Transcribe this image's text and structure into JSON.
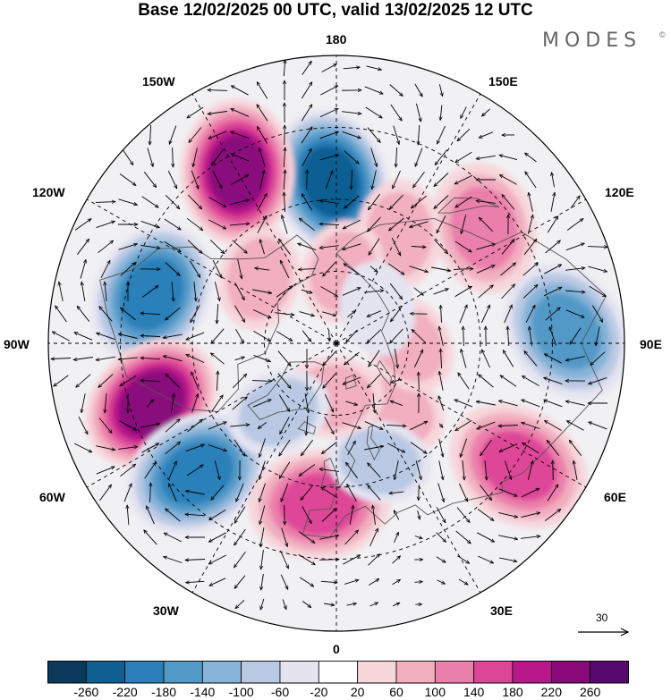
{
  "title": "Base 12/02/2025 00 UTC, valid 13/02/2025 12 UTC",
  "brand": {
    "name": "MODES",
    "mark": "©"
  },
  "longitude_labels": {
    "lon_180": "180",
    "lon_150e": "150E",
    "lon_120e": "120E",
    "lon_90e": "90E",
    "lon_60e": "60E",
    "lon_30e": "30E",
    "lon_0": "0",
    "lon_30w": "30W",
    "lon_60w": "60W",
    "lon_90w": "90W",
    "lon_120w": "120W",
    "lon_150w": "150W"
  },
  "reference_vector": {
    "value": "30"
  },
  "colorbar": {
    "tick_labels": [
      "-260",
      "-220",
      "-180",
      "-140",
      "-100",
      "-60",
      "-20",
      "20",
      "60",
      "100",
      "140",
      "180",
      "220",
      "260"
    ],
    "colors": [
      "#0b3a5c",
      "#0f5f93",
      "#2b80b9",
      "#5299c8",
      "#86b3d8",
      "#b9c9e3",
      "#e4e4f1",
      "#ffffff",
      "#f7d6dc",
      "#f1afc0",
      "#eb7fab",
      "#de4697",
      "#b9188a",
      "#89097b",
      "#560a6e"
    ]
  },
  "anomaly_centers": [
    {
      "type": "negative",
      "value": -240,
      "lon": -178,
      "lat": 45
    },
    {
      "type": "positive",
      "value": 230,
      "lon": -150,
      "lat": 35
    },
    {
      "type": "negative",
      "value": -210,
      "lon": -105,
      "lat": 37
    },
    {
      "type": "positive",
      "value": 240,
      "lon": -72,
      "lat": 36
    },
    {
      "type": "negative",
      "value": -210,
      "lon": -47,
      "lat": 37
    },
    {
      "type": "positive",
      "value": 140,
      "lon": -6,
      "lat": 45
    },
    {
      "type": "positive",
      "value": 160,
      "lon": 56,
      "lat": 29
    },
    {
      "type": "negative",
      "value": -170,
      "lon": 93,
      "lat": 26
    },
    {
      "type": "positive",
      "value": 120,
      "lon": 128,
      "lat": 38
    },
    {
      "type": "positive",
      "value": 70,
      "lon": 150,
      "lat": 55
    },
    {
      "type": "positive",
      "value": 60,
      "lon": 40,
      "lat": 65
    },
    {
      "type": "negative",
      "value": -60,
      "lon": 20,
      "lat": 55
    },
    {
      "type": "positive",
      "value": 60,
      "lon": 90,
      "lat": 70
    },
    {
      "type": "positive",
      "value": 60,
      "lon": -130,
      "lat": 62
    },
    {
      "type": "positive",
      "value": 60,
      "lon": 175,
      "lat": 70
    },
    {
      "type": "positive",
      "value": 60,
      "lon": -5,
      "lat": 75
    },
    {
      "type": "negative",
      "value": -40,
      "lon": 130,
      "lat": 75
    },
    {
      "type": "negative",
      "value": -60,
      "lon": -40,
      "lat": 65
    }
  ]
}
